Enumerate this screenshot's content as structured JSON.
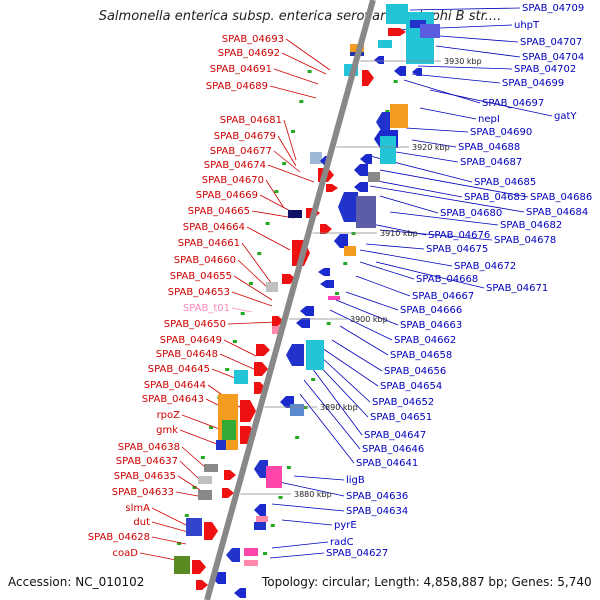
{
  "title": "Salmonella enterica subsp. enterica serovar Paratyphi B str....",
  "footer": {
    "accession": "Accession: NC_010102",
    "stats": "Topology: circular; Length: 4,858,887 bp; Genes: 5,740"
  },
  "colors": {
    "left_label": "#cc0000",
    "right_label": "#0000bb",
    "rna_label": "#ff88bb",
    "backbone": "#888888"
  },
  "kbp_marks": [
    "3930 kbp",
    "3920 kbp",
    "3910 kbp",
    "3900 kbp",
    "3890 kbp",
    "3880 kbp"
  ],
  "left_labels": [
    "SPAB_04693",
    "SPAB_04692",
    "SPAB_04691",
    "SPAB_04689",
    "SPAB_04681",
    "SPAB_04679",
    "SPAB_04677",
    "SPAB_04674",
    "SPAB_04670",
    "SPAB_04669",
    "SPAB_04665",
    "SPAB_04664",
    "SPAB_04661",
    "SPAB_04660",
    "SPAB_04655",
    "SPAB_04653",
    "SPAB_t01",
    "SPAB_04650",
    "SPAB_04649",
    "SPAB_04648",
    "SPAB_04645",
    "SPAB_04644",
    "SPAB_04643",
    "rpoZ",
    "gmk",
    "SPAB_04638",
    "SPAB_04637",
    "SPAB_04635",
    "SPAB_04633",
    "slmA",
    "dut",
    "SPAB_04628",
    "coaD"
  ],
  "right_labels": [
    "SPAB_04709",
    "uhpT",
    "SPAB_04707",
    "SPAB_04704",
    "SPAB_04702",
    "SPAB_04699",
    "SPAB_04697",
    "gatY",
    "nepI",
    "SPAB_04690",
    "SPAB_04688",
    "SPAB_04687",
    "SPAB_04685",
    "SPAB_04686",
    "SPAB_04683",
    "SPAB_04684",
    "SPAB_04680",
    "SPAB_04682",
    "SPAB_04676",
    "SPAB_04678",
    "SPAB_04675",
    "SPAB_04672",
    "SPAB_04668",
    "SPAB_04671",
    "SPAB_04667",
    "SPAB_04666",
    "SPAB_04663",
    "SPAB_04662",
    "SPAB_04658",
    "SPAB_04656",
    "SPAB_04654",
    "SPAB_04652",
    "SPAB_04651",
    "SPAB_04647",
    "SPAB_04646",
    "SPAB_04641",
    "ligB",
    "SPAB_04636",
    "SPAB_04634",
    "pyrE",
    "radC",
    "SPAB_04627"
  ]
}
